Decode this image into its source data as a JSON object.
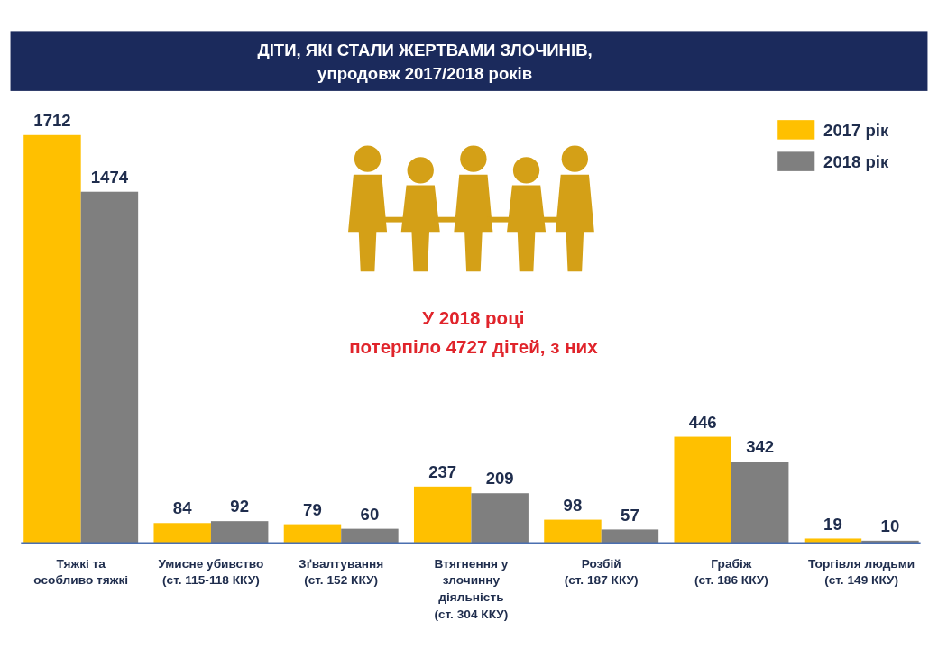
{
  "chart_data": {
    "type": "bar",
    "title": "ДІТИ, ЯКІ СТАЛИ ЖЕРТВАМИ ЗЛОЧИНІВ,",
    "subtitle": "упродовж 2017/2018 років",
    "categories": [
      "Тяжкі та\nособливо тяжкі",
      "Умисне убивство\n(ст. 115-118 ККУ)",
      "Зґвалтування\n(ст. 152 ККУ)",
      "Втягнення у\nзлочинну\nдіяльність\n(ст. 304 ККУ)",
      "Розбій\n(ст. 187 ККУ)",
      "Грабіж\n(ст. 186 ККУ)",
      "Торгівля людьми\n(ст. 149 ККУ)"
    ],
    "series": [
      {
        "name": "2017 рік",
        "color": "#ffc000",
        "values": [
          1712,
          84,
          79,
          237,
          98,
          446,
          19
        ]
      },
      {
        "name": "2018 рік",
        "color": "#7f7f7f",
        "values": [
          1474,
          92,
          60,
          209,
          57,
          342,
          10
        ]
      }
    ],
    "data_labels": true,
    "legend": "top right",
    "annotations": [
      "У 2018 році",
      "потерпіло 4727 дітей, з них"
    ]
  }
}
